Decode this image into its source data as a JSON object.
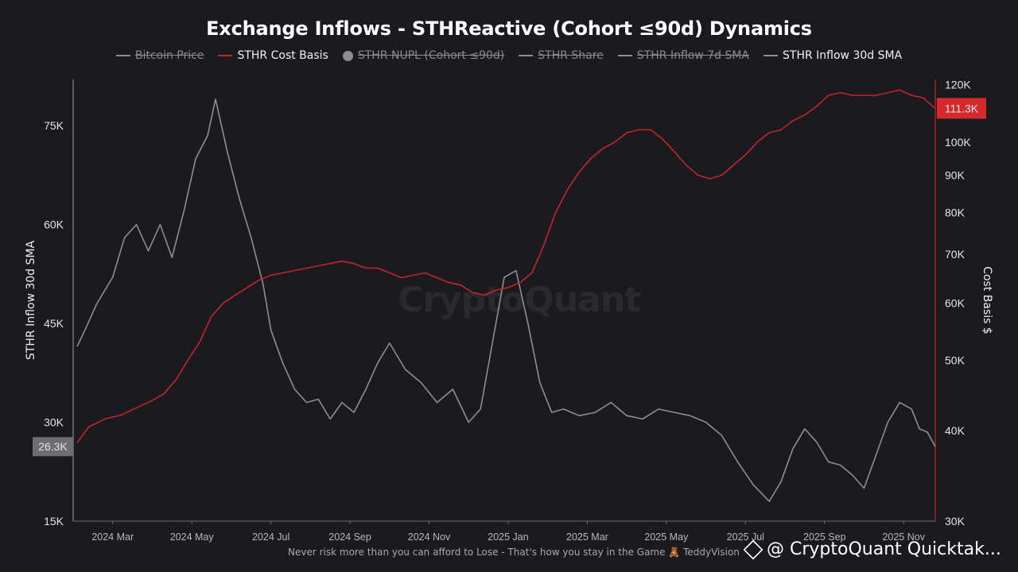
{
  "title": "Exchange Inflows - STHReactive (Cohort ≤90d) Dynamics",
  "legend": [
    {
      "label": "Bitcoin Price",
      "color": "#8d8d92",
      "active": false,
      "marker": "line"
    },
    {
      "label": "STHR Cost Basis",
      "color": "#c0262b",
      "active": true,
      "marker": "line"
    },
    {
      "label": "STHR NUPL (Cohort ≤90d)",
      "color": "#8d8d92",
      "active": false,
      "marker": "dot"
    },
    {
      "label": "STHR Share",
      "color": "#8d8d92",
      "active": false,
      "marker": "line"
    },
    {
      "label": "STHR Inflow 7d SMA",
      "color": "#8d8d92",
      "active": false,
      "marker": "line"
    },
    {
      "label": "STHR Inflow 30d SMA",
      "color": "#8d8d92",
      "active": true,
      "marker": "line"
    }
  ],
  "watermark": "CryptoQuant",
  "footer": "Never risk more than you can afford to Lose - That's how you stay in the Game 🧸 TeddyVision",
  "brand": "@ CryptoQuant Quicktak...",
  "chart_data": {
    "type": "line",
    "x_ticks": [
      "2024 Mar",
      "2024 May",
      "2024 Jul",
      "2024 Sep",
      "2024 Nov",
      "2025 Jan",
      "2025 Mar",
      "2025 May",
      "2025 Jul",
      "2025 Sep",
      "2025 Nov"
    ],
    "x_domain": [
      0,
      21.8
    ],
    "left_axis": {
      "label": "STHR Inflow 30d SMA",
      "ticks": [
        "15K",
        "30K",
        "45K",
        "60K",
        "75K"
      ],
      "tick_values": [
        15000,
        30000,
        45000,
        60000,
        75000
      ],
      "ylim": [
        15000,
        82000
      ],
      "last_value_label": "26.3K",
      "last_value_color": "#6d6d73"
    },
    "right_axis": {
      "label": "Cost Basis $",
      "scale": "log",
      "ticks": [
        "30K",
        "40K",
        "50K",
        "60K",
        "70K",
        "80K",
        "90K",
        "100K",
        "120K"
      ],
      "tick_values": [
        30000,
        40000,
        50000,
        60000,
        70000,
        80000,
        90000,
        100000,
        120000
      ],
      "ylim": [
        30000,
        122000
      ],
      "last_value_label": "111.3K",
      "last_value_color": "#d5292c"
    },
    "series": [
      {
        "name": "STHR Inflow 30d SMA",
        "axis": "left",
        "color": "#8d8d92",
        "x": [
          0.1,
          0.3,
          0.6,
          1.0,
          1.3,
          1.6,
          1.9,
          2.2,
          2.5,
          2.8,
          3.1,
          3.4,
          3.6,
          3.9,
          4.2,
          4.5,
          4.8,
          5.0,
          5.3,
          5.6,
          5.9,
          6.2,
          6.5,
          6.8,
          7.1,
          7.4,
          7.7,
          8.0,
          8.4,
          8.8,
          9.2,
          9.6,
          10.0,
          10.3,
          10.6,
          10.9,
          11.2,
          11.5,
          11.8,
          12.1,
          12.4,
          12.8,
          13.2,
          13.6,
          14.0,
          14.4,
          14.8,
          15.2,
          15.6,
          16.0,
          16.4,
          16.8,
          17.2,
          17.6,
          17.9,
          18.2,
          18.5,
          18.8,
          19.1,
          19.4,
          19.7,
          20.0,
          20.3,
          20.6,
          20.9,
          21.2,
          21.4,
          21.6,
          21.8
        ],
        "y": [
          41500,
          44000,
          48000,
          52000,
          58000,
          60000,
          56000,
          60000,
          55000,
          62000,
          70000,
          73500,
          79000,
          71000,
          64000,
          58000,
          51000,
          44000,
          39000,
          35000,
          33000,
          33500,
          30500,
          33000,
          31500,
          35000,
          39000,
          42000,
          38000,
          36000,
          33000,
          35000,
          30000,
          32000,
          42000,
          52000,
          53000,
          45000,
          36000,
          31500,
          32000,
          31000,
          31500,
          33000,
          31000,
          30500,
          32000,
          31500,
          31000,
          30000,
          28000,
          24000,
          20500,
          18000,
          21000,
          26000,
          29000,
          27000,
          24000,
          23500,
          22000,
          20000,
          25000,
          30000,
          33000,
          32000,
          29000,
          28500,
          26300
        ]
      },
      {
        "name": "STHR Cost Basis",
        "axis": "right",
        "color": "#c0262b",
        "x": [
          0.1,
          0.4,
          0.8,
          1.2,
          1.6,
          2.0,
          2.3,
          2.6,
          2.9,
          3.2,
          3.5,
          3.8,
          4.1,
          4.4,
          4.7,
          5.0,
          5.3,
          5.6,
          5.9,
          6.2,
          6.5,
          6.8,
          7.1,
          7.4,
          7.7,
          8.0,
          8.3,
          8.6,
          8.9,
          9.2,
          9.5,
          9.8,
          10.1,
          10.4,
          10.7,
          11.0,
          11.3,
          11.6,
          11.9,
          12.2,
          12.5,
          12.8,
          13.1,
          13.4,
          13.7,
          14.0,
          14.3,
          14.6,
          14.9,
          15.2,
          15.5,
          15.8,
          16.1,
          16.4,
          16.7,
          17.0,
          17.3,
          17.6,
          17.9,
          18.2,
          18.5,
          18.8,
          19.1,
          19.4,
          19.7,
          20.0,
          20.3,
          20.6,
          20.9,
          21.2,
          21.5,
          21.8
        ],
        "y": [
          38500,
          40500,
          41500,
          42000,
          43000,
          44000,
          45000,
          47000,
          50000,
          53000,
          57500,
          60000,
          61500,
          63000,
          64500,
          65500,
          66000,
          66500,
          67000,
          67500,
          68000,
          68500,
          68000,
          67000,
          67000,
          66000,
          65000,
          65500,
          66000,
          65000,
          64000,
          63500,
          62000,
          61500,
          62500,
          63000,
          64000,
          66000,
          72000,
          80000,
          86000,
          91000,
          95000,
          98000,
          100000,
          103000,
          104000,
          104000,
          101000,
          97000,
          93000,
          90000,
          89000,
          90000,
          93000,
          96000,
          100000,
          103000,
          104000,
          107000,
          109000,
          112000,
          116000,
          117000,
          116000,
          116000,
          116000,
          117000,
          118000,
          116000,
          115000,
          111300
        ]
      }
    ]
  }
}
